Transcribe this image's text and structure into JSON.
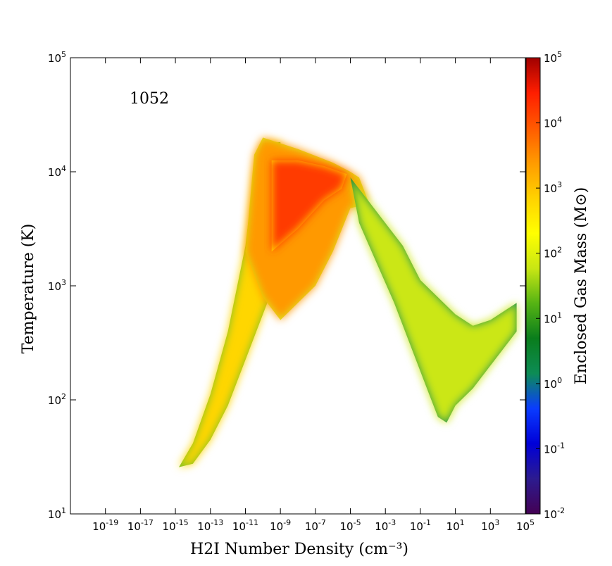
{
  "chart_data": {
    "type": "heatmap",
    "title": "",
    "annotation": "1052",
    "xlabel": "H2I Number Density (cm⁻³)",
    "ylabel": "Temperature (K)",
    "x_scale": "log",
    "y_scale": "log",
    "xlim": [
      1e-21,
      100000.0
    ],
    "ylim": [
      10,
      100000
    ],
    "x_ticks": [
      {
        "value": 1e-19,
        "base": "10",
        "exp": "-19"
      },
      {
        "value": 1e-17,
        "base": "10",
        "exp": "-17"
      },
      {
        "value": 1e-15,
        "base": "10",
        "exp": "-15"
      },
      {
        "value": 1e-13,
        "base": "10",
        "exp": "-13"
      },
      {
        "value": 1e-11,
        "base": "10",
        "exp": "-11"
      },
      {
        "value": 1e-09,
        "base": "10",
        "exp": "-9"
      },
      {
        "value": 1e-07,
        "base": "10",
        "exp": "-7"
      },
      {
        "value": 1e-05,
        "base": "10",
        "exp": "-5"
      },
      {
        "value": 0.001,
        "base": "10",
        "exp": "-3"
      },
      {
        "value": 0.1,
        "base": "10",
        "exp": "-1"
      },
      {
        "value": 10,
        "base": "10",
        "exp": "1"
      },
      {
        "value": 1000,
        "base": "10",
        "exp": "3"
      },
      {
        "value": 100000,
        "base": "10",
        "exp": "5"
      }
    ],
    "y_ticks": [
      {
        "value": 10,
        "base": "10",
        "exp": "1"
      },
      {
        "value": 100,
        "base": "10",
        "exp": "2"
      },
      {
        "value": 1000,
        "base": "10",
        "exp": "3"
      },
      {
        "value": 10000,
        "base": "10",
        "exp": "4"
      },
      {
        "value": 100000,
        "base": "10",
        "exp": "5"
      }
    ],
    "colorbar": {
      "label": "Enclosed Gas Mass (M⊙)",
      "scale": "log",
      "range": [
        0.01,
        100000
      ],
      "colormap": [
        "#440154",
        "#2c1b8f",
        "#0000d8",
        "#0a3cff",
        "#0d8c55",
        "#0a7d1c",
        "#56b414",
        "#c8e614",
        "#ffff00",
        "#ffd200",
        "#ff9b00",
        "#ff5a00",
        "#ff1e00",
        "#a00000"
      ],
      "ticks": [
        {
          "value": 0.01,
          "base": "10",
          "exp": "-2"
        },
        {
          "value": 0.1,
          "base": "10",
          "exp": "-1"
        },
        {
          "value": 1,
          "base": "10",
          "exp": "0"
        },
        {
          "value": 10,
          "base": "10",
          "exp": "1"
        },
        {
          "value": 100,
          "base": "10",
          "exp": "2"
        },
        {
          "value": 1000,
          "base": "10",
          "exp": "3"
        },
        {
          "value": 10000,
          "base": "10",
          "exp": "4"
        },
        {
          "value": 100000,
          "base": "10",
          "exp": "5"
        }
      ]
    },
    "regions": [
      {
        "name": "rising-branch",
        "points": [
          [
            -14.8,
            1.41
          ],
          [
            -14.0,
            1.62
          ],
          [
            -13.0,
            2.05
          ],
          [
            -12.0,
            2.6
          ],
          [
            -11.0,
            3.35
          ],
          [
            -10.5,
            4.0
          ],
          [
            -10.0,
            4.25
          ],
          [
            -9.0,
            4.26
          ],
          [
            -9.0,
            3.15
          ],
          [
            -10.0,
            2.75
          ],
          [
            -11.0,
            2.35
          ],
          [
            -12.0,
            1.95
          ],
          [
            -13.0,
            1.65
          ],
          [
            -14.0,
            1.44
          ]
        ],
        "level": 2.8
      },
      {
        "name": "upper-ridge",
        "points": [
          [
            -10.5,
            4.15
          ],
          [
            -10.0,
            4.3
          ],
          [
            -8.0,
            4.2
          ],
          [
            -6.0,
            4.08
          ],
          [
            -5.0,
            4.0
          ],
          [
            -4.5,
            3.95
          ],
          [
            -4.0,
            3.75
          ],
          [
            -4.5,
            3.7
          ],
          [
            -5.0,
            3.68
          ],
          [
            -6.0,
            3.3
          ],
          [
            -7.0,
            3.0
          ],
          [
            -8.0,
            2.85
          ],
          [
            -9.0,
            2.7
          ],
          [
            -10.0,
            2.9
          ],
          [
            -11.0,
            3.3
          ]
        ],
        "level": 3.4
      },
      {
        "name": "core-hot",
        "points": [
          [
            -9.5,
            4.1
          ],
          [
            -8.0,
            4.1
          ],
          [
            -6.5,
            4.05
          ],
          [
            -5.2,
            3.98
          ],
          [
            -5.5,
            3.85
          ],
          [
            -6.5,
            3.75
          ],
          [
            -8.0,
            3.5
          ],
          [
            -9.5,
            3.3
          ]
        ],
        "level": 4.2
      },
      {
        "name": "falling-branch",
        "points": [
          [
            -5.0,
            3.95
          ],
          [
            -4.0,
            3.75
          ],
          [
            -3.0,
            3.55
          ],
          [
            -2.0,
            3.35
          ],
          [
            -1.0,
            3.05
          ],
          [
            0.0,
            2.9
          ],
          [
            1.0,
            2.75
          ],
          [
            2.0,
            2.65
          ],
          [
            3.0,
            2.7
          ],
          [
            4.5,
            2.85
          ],
          [
            4.5,
            2.6
          ],
          [
            3.0,
            2.3
          ],
          [
            2.0,
            2.1
          ],
          [
            1.0,
            1.95
          ],
          [
            0.5,
            1.8
          ],
          [
            0.0,
            1.85
          ],
          [
            -0.5,
            2.05
          ],
          [
            -1.5,
            2.45
          ],
          [
            -2.5,
            2.85
          ],
          [
            -3.5,
            3.2
          ],
          [
            -4.5,
            3.55
          ]
        ],
        "level": 1.8
      }
    ]
  }
}
